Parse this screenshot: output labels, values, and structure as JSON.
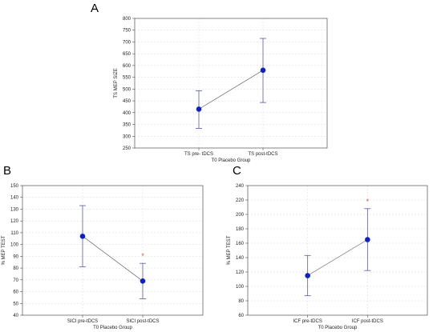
{
  "chart_data": [
    {
      "type": "scatter",
      "panel": "A",
      "categories": [
        "TS pre- tDCS",
        "TS post-tDCS"
      ],
      "values": [
        415,
        580
      ],
      "error_low": [
        333,
        443
      ],
      "error_high": [
        493,
        715
      ],
      "xlabel": "T0 Placebo Group",
      "ylabel": "TS MEP SIZE",
      "ylim": [
        250,
        800
      ],
      "yticks": [
        250,
        300,
        350,
        400,
        450,
        500,
        550,
        600,
        650,
        700,
        750,
        800
      ],
      "significance": [
        "",
        ""
      ],
      "grid": true
    },
    {
      "type": "scatter",
      "panel": "B",
      "categories": [
        "SICI pre-tDCS",
        "SICI post-tDCS"
      ],
      "values": [
        107,
        69
      ],
      "error_low": [
        81,
        54
      ],
      "error_high": [
        133,
        84
      ],
      "xlabel": "T0 Placebo Group",
      "ylabel": "% MEP TEST",
      "ylim": [
        40,
        150
      ],
      "yticks": [
        40,
        50,
        60,
        70,
        80,
        90,
        100,
        110,
        120,
        130,
        140,
        150
      ],
      "significance": [
        "",
        "*"
      ],
      "grid": true
    },
    {
      "type": "scatter",
      "panel": "C",
      "categories": [
        "ICF pre-tDCS",
        "ICF post-tDCS"
      ],
      "values": [
        115,
        165
      ],
      "error_low": [
        87,
        122
      ],
      "error_high": [
        143,
        208
      ],
      "xlabel": "T0 Placebo Group",
      "ylabel": "% MEP TEST",
      "ylim": [
        60,
        240
      ],
      "yticks": [
        60,
        80,
        100,
        120,
        140,
        160,
        180,
        200,
        220,
        240
      ],
      "significance": [
        "",
        "*"
      ],
      "grid": true
    }
  ],
  "colors": {
    "point": "#1020c8",
    "error_bar": "#5a5aa8",
    "connector": "#666666",
    "significance": "#e05050"
  }
}
